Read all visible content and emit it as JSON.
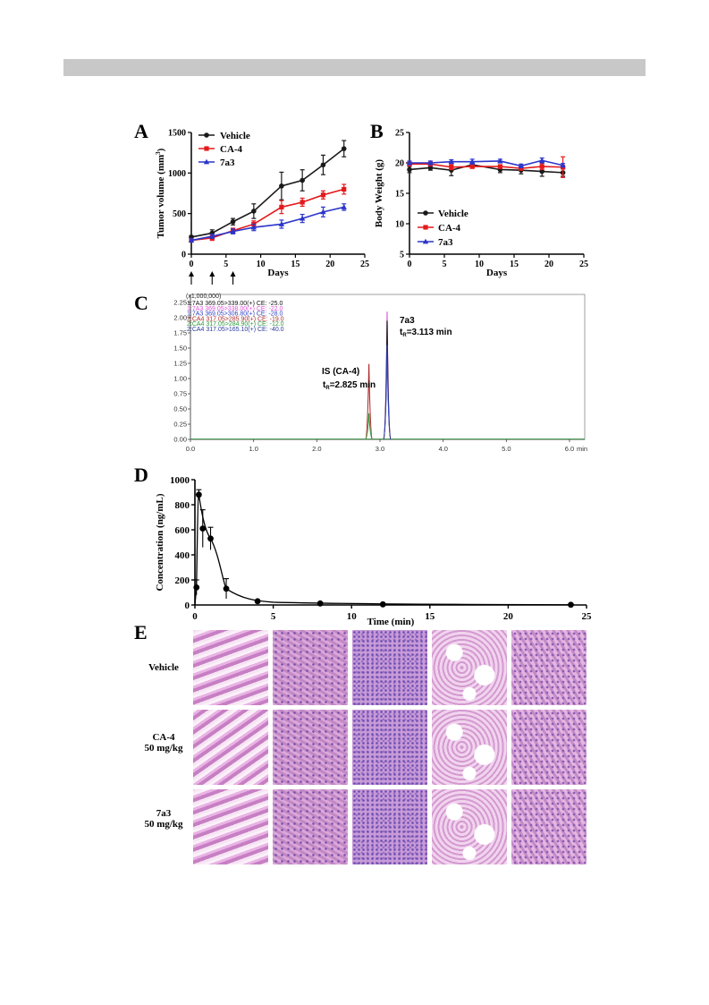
{
  "colors": {
    "vehicle": "#1a1a1a",
    "ca4": "#e31a1c",
    "7a3": "#2b35c9"
  },
  "chart_data": [
    {
      "panel": "A",
      "type": "line",
      "xlabel": "Days",
      "ylabel": "Tumor volume (mm",
      "ylabel_sup": "3",
      "ylabel_close": ")",
      "xlim": [
        0,
        25
      ],
      "ylim": [
        0,
        1500
      ],
      "xticks": [
        "0",
        "5",
        "10",
        "15",
        "20",
        "25"
      ],
      "yticks": [
        "0",
        "500",
        "1000",
        "1500"
      ],
      "x": [
        0,
        3,
        6,
        9,
        13,
        16,
        19,
        22
      ],
      "dosing_days": [
        0,
        3,
        6
      ],
      "legend_position": "top-left",
      "series": [
        {
          "name": "Vehicle",
          "marker": "circle",
          "values": [
            210,
            260,
            400,
            530,
            840,
            910,
            1100,
            1300
          ],
          "err": [
            20,
            40,
            40,
            90,
            170,
            130,
            120,
            100
          ]
        },
        {
          "name": "CA-4",
          "marker": "square",
          "values": [
            170,
            200,
            290,
            370,
            580,
            640,
            730,
            800
          ],
          "err": [
            20,
            30,
            30,
            40,
            80,
            50,
            50,
            60
          ]
        },
        {
          "name": "7a3",
          "marker": "triangle",
          "values": [
            170,
            220,
            280,
            330,
            370,
            440,
            520,
            580
          ],
          "err": [
            20,
            25,
            30,
            40,
            50,
            50,
            60,
            40
          ]
        }
      ]
    },
    {
      "panel": "B",
      "type": "line",
      "xlabel": "Days",
      "ylabel": "Body Weight (g)",
      "xlim": [
        0,
        25
      ],
      "ylim": [
        5,
        25
      ],
      "xticks": [
        "0",
        "5",
        "10",
        "15",
        "20",
        "25"
      ],
      "yticks": [
        "5",
        "10",
        "15",
        "20",
        "25"
      ],
      "x": [
        0,
        3,
        6,
        9,
        13,
        16,
        19,
        22
      ],
      "legend_position": "bottom-left",
      "series": [
        {
          "name": "Vehicle",
          "marker": "circle",
          "values": [
            18.9,
            19.2,
            18.8,
            19.7,
            18.9,
            18.8,
            18.6,
            18.4
          ],
          "err": [
            0.5,
            0.4,
            0.9,
            0.5,
            0.5,
            0.6,
            0.8,
            0.6
          ]
        },
        {
          "name": "CA-4",
          "marker": "square",
          "values": [
            19.8,
            19.8,
            19.3,
            19.4,
            19.4,
            19.1,
            19.4,
            19.3
          ],
          "err": [
            0.3,
            0.3,
            0.4,
            0.3,
            0.3,
            0.3,
            0.5,
            1.7
          ]
        },
        {
          "name": "7a3",
          "marker": "triangle",
          "values": [
            20.0,
            20.0,
            20.2,
            20.2,
            20.3,
            19.5,
            20.4,
            19.6
          ],
          "err": [
            0.3,
            0.3,
            0.3,
            0.4,
            0.3,
            0.3,
            0.4,
            0.3
          ]
        }
      ]
    },
    {
      "panel": "C",
      "type": "line",
      "y_multiplier": "(x1,000,000)",
      "xunit": "min",
      "xlim": [
        0,
        6.2
      ],
      "ylim": [
        -0.05,
        2.35
      ],
      "xticks": [
        "0.0",
        "1.0",
        "2.0",
        "3.0",
        "4.0",
        "5.0",
        "6.0"
      ],
      "yticks": [
        "0.00",
        "0.25",
        "0.50",
        "0.75",
        "1.00",
        "1.25",
        "1.50",
        "1.75",
        "2.00",
        "2.25"
      ],
      "transitions": [
        {
          "text": "1:7A3 369.05>339.00(+) CE: -25.0",
          "color": "#111111"
        },
        {
          "text": "1:7A3 369.05>338.00(+) CE: -22.0",
          "color": "#e055d8"
        },
        {
          "text": "1:7A3 369.05>306.80(+) CE: -28.0",
          "color": "#2f45c0"
        },
        {
          "text": "2:CA4 317.05>285.90(+) CE: -19.0",
          "color": "#b02a2a"
        },
        {
          "text": "2:CA4 317.05>284.90(+) CE: -12.0",
          "color": "#2a9a3a"
        },
        {
          "text": "2:CA4 317.05>165.10(+) CE: -40.0",
          "color": "#2a3aa0"
        }
      ],
      "peaks": [
        {
          "label": "IS (CA-4)",
          "rt_prefix": "t",
          "rt_sub": "R",
          "rt_text": "=2.825 min",
          "x": 2.825,
          "heights": [
            1.24,
            0.43
          ]
        },
        {
          "label": "7a3",
          "rt_prefix": "t",
          "rt_sub": "R",
          "rt_text": "=3.113 min",
          "x": 3.113,
          "heights": [
            2.1,
            1.95,
            1.55
          ]
        }
      ]
    },
    {
      "panel": "D",
      "type": "line",
      "xlabel": "Time (min)",
      "ylabel": "Concentration (ng/mL)",
      "xlim": [
        0,
        25
      ],
      "ylim": [
        0,
        1000
      ],
      "xticks": [
        "0",
        "5",
        "10",
        "15",
        "20",
        "25"
      ],
      "yticks": [
        "0",
        "200",
        "400",
        "600",
        "800",
        "1000"
      ],
      "points": [
        {
          "x": 0.1,
          "y": 140,
          "err": 60
        },
        {
          "x": 0.25,
          "y": 880,
          "err": 40
        },
        {
          "x": 0.5,
          "y": 610,
          "err": 150
        },
        {
          "x": 1.0,
          "y": 530,
          "err": 90
        },
        {
          "x": 2.0,
          "y": 130,
          "err": 80
        },
        {
          "x": 4.0,
          "y": 30,
          "err": 5
        },
        {
          "x": 8.0,
          "y": 12,
          "err": 3
        },
        {
          "x": 12.0,
          "y": 5,
          "err": 2
        },
        {
          "x": 24.0,
          "y": 2,
          "err": 1
        }
      ]
    }
  ],
  "panels": {
    "A": "A",
    "B": "B",
    "C": "C",
    "D": "D",
    "E": "E"
  },
  "histology": {
    "rows": [
      {
        "label": "Vehicle",
        "dose": ""
      },
      {
        "label": "CA-4",
        "dose": "50 mg/kg"
      },
      {
        "label": "7a3",
        "dose": "50 mg/kg"
      }
    ]
  }
}
